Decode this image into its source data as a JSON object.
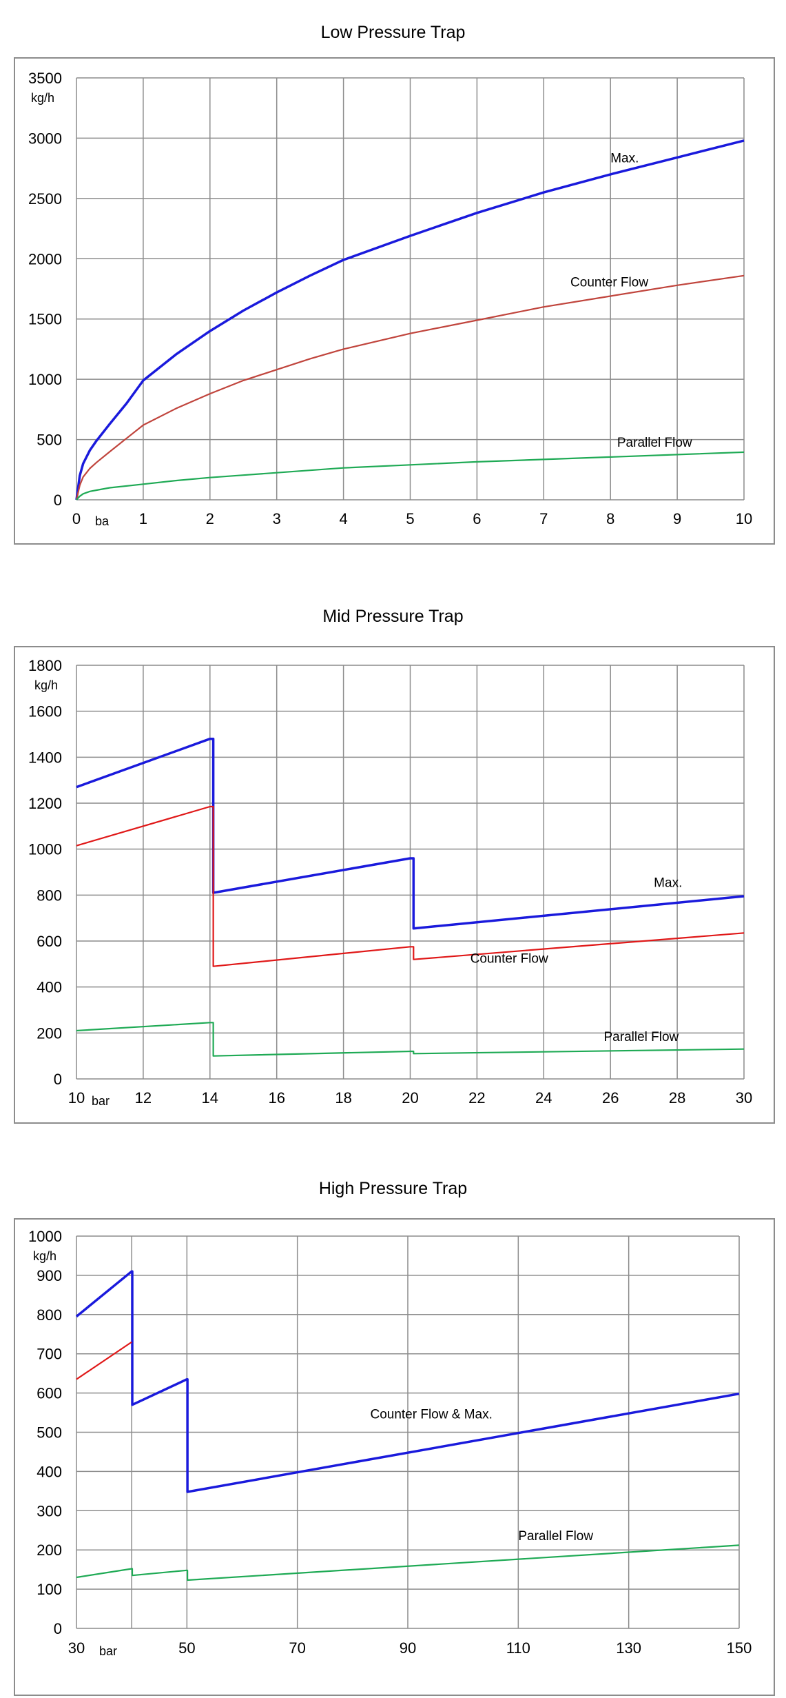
{
  "chart_data": [
    {
      "type": "line",
      "title": "Low Pressure Trap",
      "xlabel": "ba",
      "ylabel": "kg/h",
      "xlim": [
        0,
        10
      ],
      "ylim": [
        0,
        3500
      ],
      "xticks": [
        "0",
        "1",
        "2",
        "3",
        "4",
        "5",
        "6",
        "7",
        "8",
        "9",
        "10"
      ],
      "yticks": [
        "0",
        "500",
        "1000",
        "1500",
        "2000",
        "2500",
        "3000",
        "3500"
      ],
      "grid": true,
      "series": [
        {
          "name": "Max.",
          "color": "#1a1adc",
          "x": [
            0,
            0.05,
            0.1,
            0.2,
            0.3,
            0.5,
            0.75,
            1,
            1.5,
            2,
            2.5,
            3,
            3.5,
            4,
            5,
            6,
            7,
            8,
            9,
            10
          ],
          "y": [
            0,
            200,
            300,
            410,
            490,
            630,
            800,
            990,
            1210,
            1400,
            1570,
            1720,
            1860,
            1990,
            2190,
            2380,
            2550,
            2700,
            2840,
            2980
          ]
        },
        {
          "name": "Counter Flow",
          "color": "#c0443c",
          "x": [
            0,
            0.05,
            0.1,
            0.2,
            0.3,
            0.5,
            0.75,
            1,
            1.5,
            2,
            2.5,
            3,
            3.5,
            4,
            5,
            6,
            7,
            8,
            9,
            10
          ],
          "y": [
            0,
            120,
            190,
            260,
            310,
            400,
            510,
            620,
            760,
            880,
            990,
            1080,
            1170,
            1250,
            1380,
            1490,
            1600,
            1690,
            1780,
            1860
          ]
        },
        {
          "name": "Parallel Flow",
          "color": "#1faa55",
          "x": [
            0,
            0.05,
            0.1,
            0.2,
            0.3,
            0.5,
            1,
            1.5,
            2,
            2.5,
            3,
            3.5,
            4,
            5,
            6,
            7,
            8,
            9,
            10
          ],
          "y": [
            0,
            30,
            50,
            70,
            80,
            100,
            130,
            160,
            185,
            205,
            225,
            245,
            265,
            290,
            315,
            335,
            355,
            375,
            395
          ]
        }
      ],
      "annotations": [
        {
          "text": "Max.",
          "x": 8.0,
          "y": 2800
        },
        {
          "text": "Counter Flow",
          "x": 7.4,
          "y": 1770
        },
        {
          "text": "Parallel Flow",
          "x": 8.1,
          "y": 440
        }
      ]
    },
    {
      "type": "line",
      "title": "Mid Pressure Trap",
      "xlabel": "bar",
      "ylabel": "kg/h",
      "xlim": [
        10,
        30
      ],
      "ylim": [
        0,
        1800
      ],
      "xticks": [
        "10",
        "12",
        "14",
        "16",
        "18",
        "20",
        "22",
        "24",
        "26",
        "28",
        "30"
      ],
      "yticks": [
        "0",
        "200",
        "400",
        "600",
        "800",
        "1000",
        "1200",
        "1400",
        "1600",
        "1800"
      ],
      "grid": true,
      "series": [
        {
          "name": "Max.",
          "color": "#1a1adc",
          "x": [
            10,
            14,
            14.1,
            14.1,
            20,
            20.1,
            20.1,
            30
          ],
          "y": [
            1270,
            1480,
            1480,
            810,
            960,
            960,
            655,
            795
          ]
        },
        {
          "name": "Counter Flow",
          "color": "#e01818",
          "x": [
            10,
            14,
            14.1,
            14.1,
            20,
            20.1,
            20.1,
            30
          ],
          "y": [
            1015,
            1185,
            1185,
            490,
            575,
            575,
            520,
            635
          ]
        },
        {
          "name": "Parallel Flow",
          "color": "#1faa55",
          "x": [
            10,
            14,
            14.1,
            14.1,
            20,
            20.1,
            20.1,
            30
          ],
          "y": [
            210,
            245,
            245,
            100,
            120,
            120,
            110,
            130
          ]
        }
      ],
      "annotations": [
        {
          "text": "Max.",
          "x": 27.3,
          "y": 835
        },
        {
          "text": "Counter Flow",
          "x": 21.8,
          "y": 505
        },
        {
          "text": "Parallel Flow",
          "x": 25.8,
          "y": 165
        }
      ]
    },
    {
      "type": "line",
      "title": "High Pressure Trap",
      "xlabel": "bar",
      "ylabel": "kg/h",
      "xlim": [
        30,
        150
      ],
      "ylim": [
        0,
        1000
      ],
      "xticks": [
        "30",
        "50",
        "70",
        "90",
        "110",
        "130",
        "150"
      ],
      "yticks": [
        "0",
        "100",
        "200",
        "300",
        "400",
        "500",
        "600",
        "700",
        "800",
        "900",
        "1000"
      ],
      "xtick_values": [
        30,
        50,
        70,
        90,
        110,
        130,
        150
      ],
      "grid_x": [
        30,
        40,
        50,
        70,
        90,
        110,
        130,
        150
      ],
      "grid": true,
      "series": [
        {
          "name": "Counter Flow & Max.",
          "color": "#1a1adc",
          "x": [
            30,
            40,
            40.1,
            40.1,
            50,
            50.1,
            50.1,
            150
          ],
          "y": [
            795,
            910,
            910,
            570,
            635,
            635,
            348,
            598
          ]
        },
        {
          "name": "",
          "color": "#e01818",
          "x": [
            30,
            40
          ],
          "y": [
            635,
            730
          ]
        },
        {
          "name": "Parallel Flow",
          "color": "#1faa55",
          "x": [
            30,
            40,
            40.1,
            40.1,
            50,
            50.1,
            50.1,
            150
          ],
          "y": [
            130,
            152,
            152,
            135,
            148,
            148,
            123,
            212
          ]
        }
      ],
      "annotations": [
        {
          "text": "Counter Flow & Max.",
          "x": 83.2,
          "y": 535
        },
        {
          "text": "Parallel  Flow",
          "x": 110,
          "y": 225
        }
      ]
    }
  ]
}
